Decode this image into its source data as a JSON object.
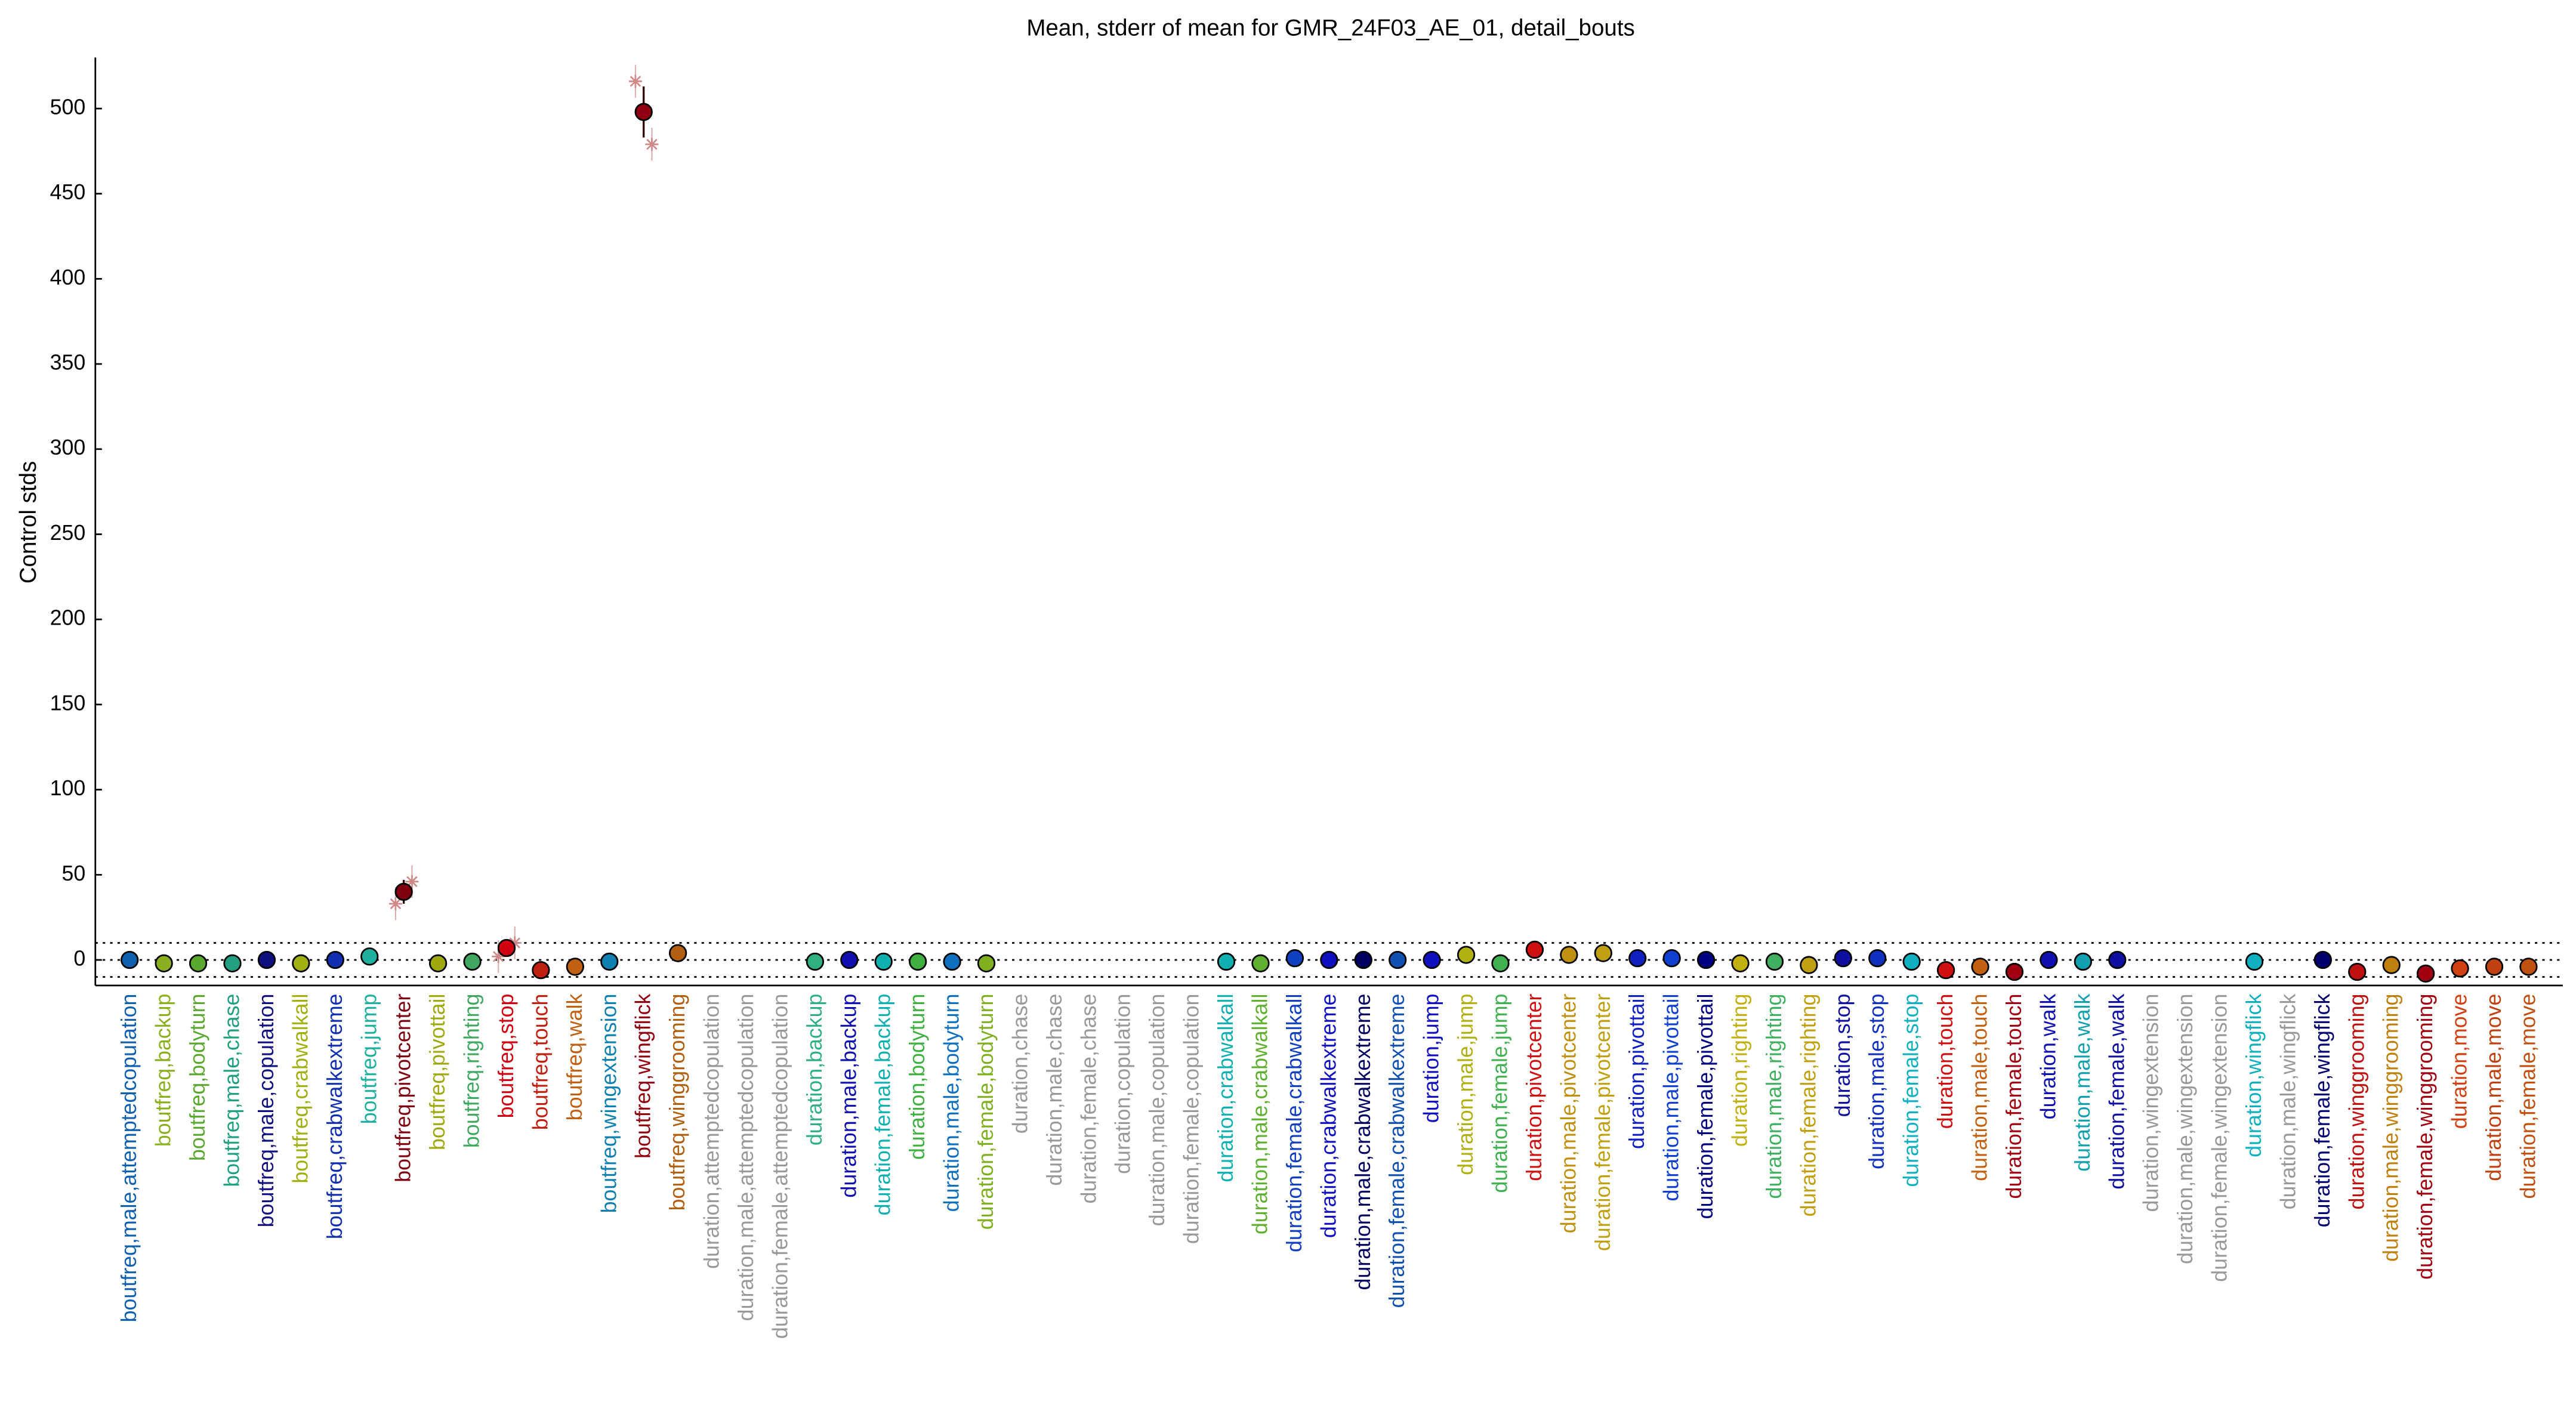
{
  "chart_data": {
    "type": "errorbar",
    "title": "Mean, stderr of mean for GMR_24F03_AE_01, detail_bouts",
    "y_label": "Control stds",
    "categories": [
      "boutfreq,male,attemptedcopulation",
      "boutfreq,backup",
      "boutfreq,bodyturn",
      "boutfreq,male,chase",
      "boutfreq,male,copulation",
      "boutfreq,crabwalkall",
      "boutfreq,crabwalkextreme",
      "boutfreq,jump",
      "boutfreq,pivotcenter",
      "boutfreq,pivottail",
      "boutfreq,righting",
      "boutfreq,stop",
      "boutfreq,touch",
      "boutfreq,walk",
      "boutfreq,wingextension",
      "boutfreq,wingflick",
      "boutfreq,winggrooming",
      "duration,attemptedcopulation",
      "duration,male,attemptedcopulation",
      "duration,female,attemptedcopulation",
      "duration,backup",
      "duration,male,backup",
      "duration,female,backup",
      "duration,bodyturn",
      "duration,male,bodyturn",
      "duration,female,bodyturn",
      "duration,chase",
      "duration,male,chase",
      "duration,female,chase",
      "duration,copulation",
      "duration,male,copulation",
      "duration,female,copulation",
      "duration,crabwalkall",
      "duration,male,crabwalkall",
      "duration,female,crabwalkall",
      "duration,crabwalkextreme",
      "duration,male,crabwalkextreme",
      "duration,female,crabwalkextreme",
      "duration,jump",
      "duration,male,jump",
      "duration,female,jump",
      "duration,pivotcenter",
      "duration,male,pivotcenter",
      "duration,female,pivotcenter",
      "duration,pivottail",
      "duration,male,pivottail",
      "duration,female,pivottail",
      "duration,righting",
      "duration,male,righting",
      "duration,female,righting",
      "duration,stop",
      "duration,male,stop",
      "duration,female,stop",
      "duration,touch",
      "duration,male,touch",
      "duration,female,touch",
      "duration,walk",
      "duration,male,walk",
      "duration,female,walk",
      "duration,wingextension",
      "duration,male,wingextension",
      "duration,female,wingextension",
      "duration,wingflick",
      "duration,male,wingflick",
      "duration,female,wingflick",
      "duration,winggrooming",
      "duration,male,winggrooming",
      "duration,female,winggrooming",
      "duration,move",
      "duration,male,move",
      "duration,female,move"
    ],
    "colors": [
      "#1060b0",
      "#8ab020",
      "#5aa830",
      "#20a080",
      "#101080",
      "#a0b010",
      "#1030b0",
      "#20b0a0",
      "#800010",
      "#a0a810",
      "#40a860",
      "#d00010",
      "#c02010",
      "#c06010",
      "#1080b0",
      "#900010",
      "#b06010",
      "#999999",
      "#999999",
      "#999999",
      "#30b080",
      "#1010b0",
      "#10b0b0",
      "#40b040",
      "#1070c0",
      "#80b020",
      "#999999",
      "#999999",
      "#999999",
      "#999999",
      "#999999",
      "#999999",
      "#10b0b0",
      "#60b030",
      "#1040c0",
      "#1010c0",
      "#000060",
      "#1050b0",
      "#1010c0",
      "#b0b010",
      "#40b050",
      "#d01010",
      "#c09010",
      "#c0a010",
      "#1020c0",
      "#1040d0",
      "#000080",
      "#c0b010",
      "#40b060",
      "#c0a010",
      "#1010a0",
      "#1030c0",
      "#10b0c0",
      "#d01010",
      "#c06010",
      "#a00010",
      "#1010b0",
      "#10a0b0",
      "#1010a0",
      "#999999",
      "#999999",
      "#999999",
      "#10b0c0",
      "#999999",
      "#000070",
      "#c01010",
      "#c08010",
      "#a00010",
      "#d04010",
      "#c04010",
      "#c05010"
    ],
    "values": [
      0,
      -2,
      -2,
      -2,
      0,
      -2,
      0,
      2,
      40,
      -2,
      -1,
      7,
      -6,
      -4,
      -1,
      498,
      4,
      null,
      null,
      null,
      -1,
      0,
      -1,
      -1,
      -1,
      -2,
      null,
      null,
      null,
      null,
      null,
      null,
      -1,
      -2,
      1,
      0,
      0,
      0,
      0,
      3,
      -2,
      6,
      3,
      4,
      1,
      1,
      0,
      -2,
      -1,
      -3,
      1,
      1,
      -1,
      -6,
      -4,
      -7,
      0,
      -1,
      0,
      null,
      null,
      null,
      -1,
      null,
      0,
      -7,
      -3,
      -8,
      -5,
      -4,
      -4
    ],
    "errors": [
      1,
      1,
      1,
      1,
      1,
      1,
      1,
      1,
      7,
      1,
      1,
      2,
      1,
      1,
      1,
      15,
      1,
      null,
      null,
      null,
      1,
      1,
      1,
      1,
      1,
      1,
      null,
      null,
      null,
      null,
      null,
      null,
      1,
      1,
      1,
      1,
      1,
      1,
      1,
      1,
      1,
      2,
      1,
      1,
      1,
      1,
      1,
      1,
      1,
      1,
      1,
      1,
      1,
      2,
      1,
      1,
      1,
      1,
      1,
      null,
      null,
      null,
      1,
      null,
      1,
      2,
      1,
      2,
      1,
      1,
      1
    ],
    "samples": [
      null,
      null,
      null,
      null,
      null,
      null,
      null,
      null,
      [
        33,
        46
      ],
      null,
      null,
      [
        2,
        10
      ],
      null,
      null,
      null,
      [
        516,
        479
      ],
      null,
      null,
      null,
      null,
      null,
      null,
      null,
      null,
      null,
      null,
      null,
      null,
      null,
      null,
      null,
      null,
      null,
      null,
      null,
      null,
      null,
      null,
      null,
      null,
      null,
      null,
      null,
      null,
      null,
      null,
      null,
      null,
      null,
      null,
      null,
      null,
      null,
      null,
      null,
      null,
      null,
      null,
      null,
      null,
      null,
      null,
      null,
      null,
      null,
      null,
      null,
      null,
      null,
      null,
      null
    ],
    "sample_color": "#d08888",
    "xlim": [
      0,
      72
    ],
    "ylim": [
      -15,
      530
    ],
    "yticks": [
      0,
      50,
      100,
      150,
      200,
      250,
      300,
      350,
      400,
      450,
      500
    ],
    "hlines": [
      -10,
      0,
      10
    ]
  }
}
